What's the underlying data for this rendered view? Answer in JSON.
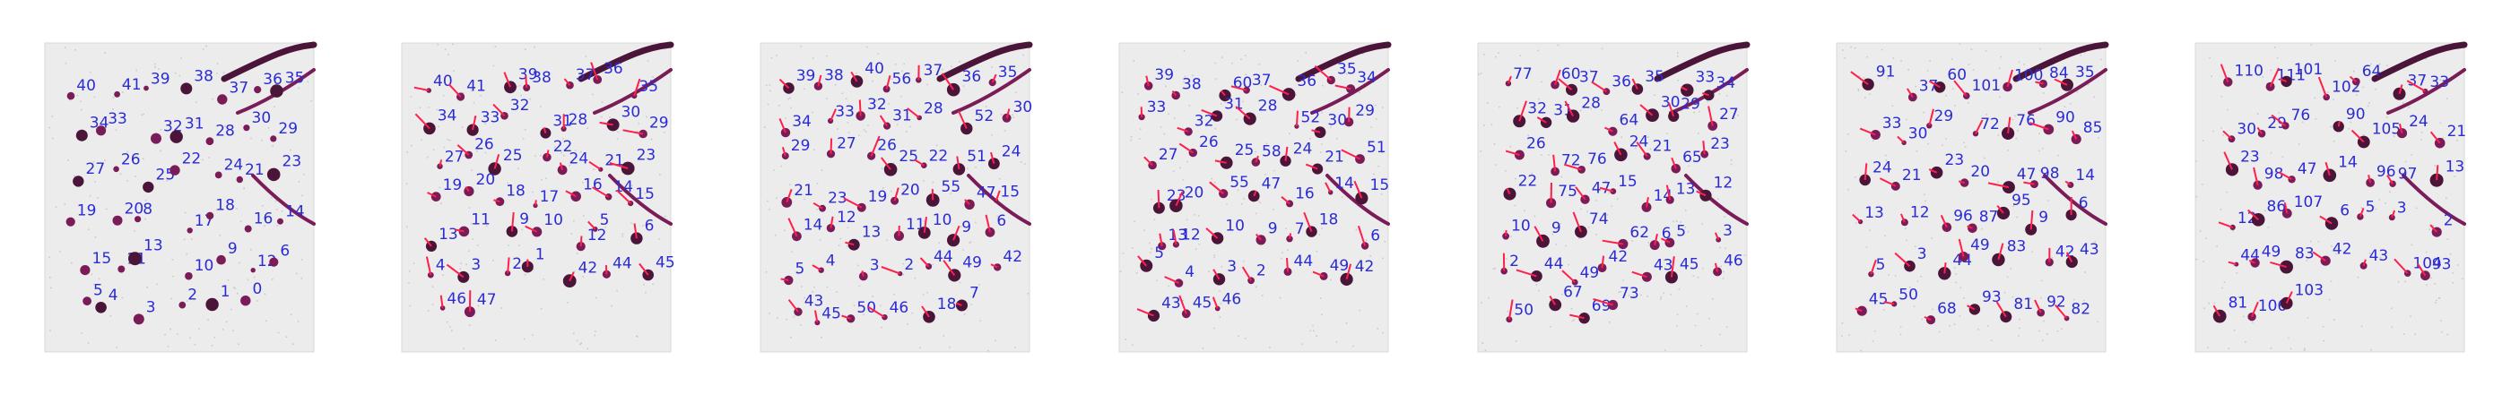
{
  "colors": {
    "label": "#2b2bd6",
    "vector": "#ff1f4b",
    "blob": "#7a1c58",
    "background": "#ececec"
  },
  "frames": [
    {
      "labels": [
        "40",
        "41",
        "39",
        "38",
        "37",
        "36",
        "35",
        "34",
        "33",
        "32",
        "31",
        "28",
        "30",
        "29",
        "27",
        "26",
        "25",
        "22",
        "24",
        "21",
        "23",
        "19",
        "20",
        "8",
        "17",
        "18",
        "16",
        "14",
        "15",
        "11",
        "13",
        "10",
        "9",
        "12",
        "6",
        "5",
        "4",
        "3",
        "2",
        "1",
        "0"
      ]
    },
    {
      "labels": [
        "40",
        "41",
        "39",
        "38",
        "37",
        "36",
        "35",
        "34",
        "33",
        "32",
        "31",
        "28",
        "30",
        "29",
        "27",
        "26",
        "25",
        "22",
        "24",
        "21",
        "23",
        "19",
        "20",
        "18",
        "17",
        "16",
        "14",
        "15",
        "13",
        "11",
        "9",
        "10",
        "12",
        "5",
        "6",
        "4",
        "3",
        "2",
        "1",
        "42",
        "44",
        "45",
        "46",
        "47"
      ]
    },
    {
      "labels": [
        "39",
        "38",
        "40",
        "56",
        "37",
        "36",
        "35",
        "34",
        "33",
        "32",
        "31",
        "28",
        "52",
        "30",
        "29",
        "27",
        "26",
        "25",
        "22",
        "51",
        "24",
        "21",
        "23",
        "19",
        "20",
        "55",
        "47",
        "15",
        "14",
        "12",
        "13",
        "11",
        "10",
        "9",
        "6",
        "5",
        "4",
        "3",
        "2",
        "44",
        "49",
        "42",
        "43",
        "45",
        "50",
        "46",
        "18",
        "7"
      ]
    },
    {
      "labels": [
        "39",
        "38",
        "60",
        "37",
        "36",
        "35",
        "34",
        "33",
        "32",
        "31",
        "28",
        "52",
        "30",
        "29",
        "27",
        "26",
        "25",
        "58",
        "24",
        "21",
        "51",
        "23",
        "20",
        "55",
        "47",
        "16",
        "14",
        "15",
        "13",
        "12",
        "10",
        "9",
        "7",
        "18",
        "6",
        "5",
        "4",
        "3",
        "2",
        "44",
        "49",
        "42",
        "43",
        "45",
        "46"
      ]
    },
    {
      "labels": [
        "77",
        "60",
        "37",
        "36",
        "35",
        "33",
        "34",
        "32",
        "31",
        "28",
        "64",
        "30",
        "29",
        "27",
        "26",
        "72",
        "76",
        "24",
        "21",
        "65",
        "23",
        "22",
        "75",
        "47",
        "15",
        "14",
        "13",
        "12",
        "10",
        "9",
        "74",
        "62",
        "6",
        "5",
        "3",
        "2",
        "44",
        "49",
        "42",
        "43",
        "45",
        "46",
        "50",
        "67",
        "69",
        "73"
      ]
    },
    {
      "labels": [
        "91",
        "37",
        "60",
        "101",
        "100",
        "84",
        "35",
        "33",
        "30",
        "29",
        "72",
        "76",
        "90",
        "85",
        "24",
        "21",
        "23",
        "20",
        "47",
        "98",
        "14",
        "13",
        "12",
        "96",
        "87",
        "95",
        "9",
        "6",
        "5",
        "3",
        "44",
        "49",
        "83",
        "42",
        "43",
        "45",
        "50",
        "68",
        "93",
        "81",
        "92",
        "82"
      ]
    },
    {
      "labels": [
        "110",
        "111",
        "101",
        "102",
        "64",
        "37",
        "33",
        "30",
        "29",
        "76",
        "90",
        "105",
        "24",
        "21",
        "23",
        "98",
        "47",
        "14",
        "96",
        "97",
        "13",
        "12",
        "86",
        "107",
        "6",
        "5",
        "3",
        "2",
        "44",
        "49",
        "83",
        "42",
        "43",
        "104",
        "93",
        "81",
        "106",
        "103"
      ]
    }
  ]
}
